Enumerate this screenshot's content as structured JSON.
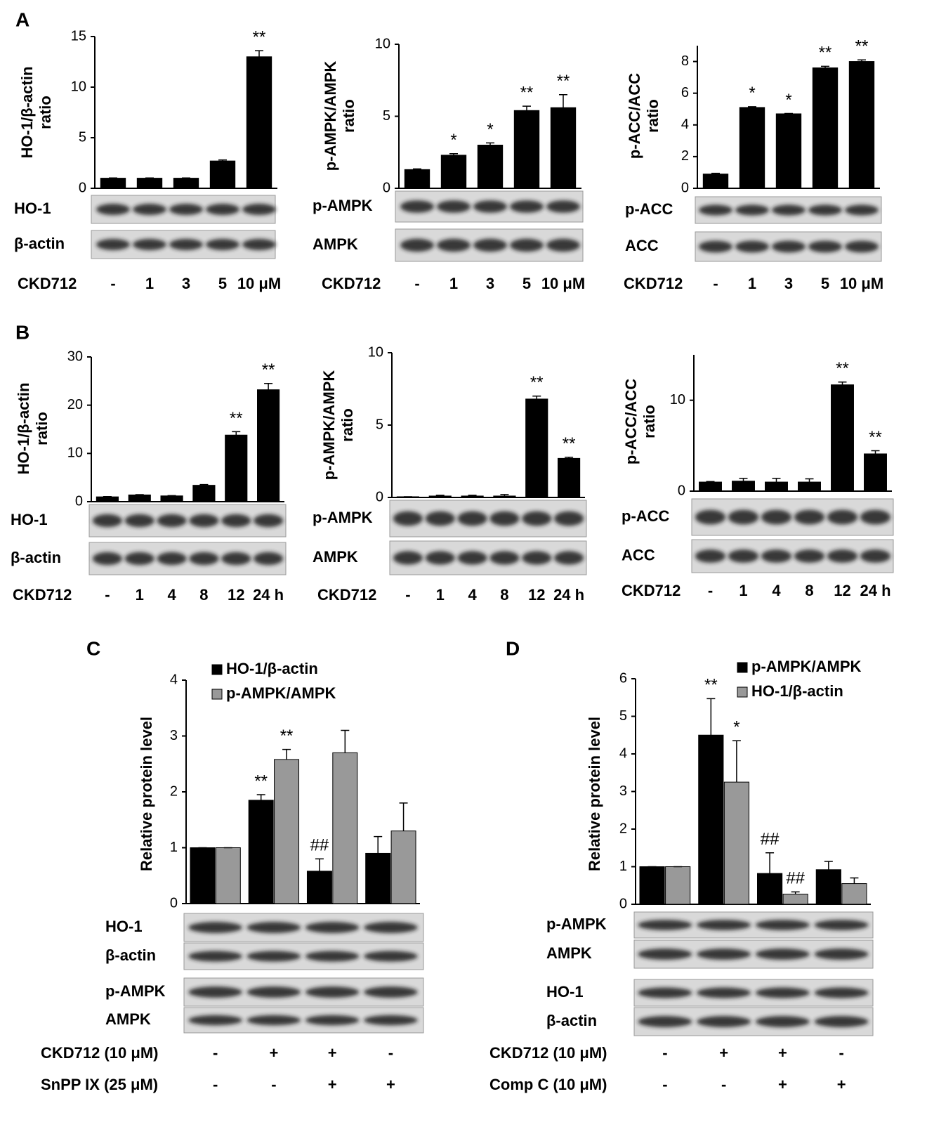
{
  "chart_data": [
    {
      "type": "bar",
      "panel": "A",
      "ylabel": [
        "HO-1/β-actin",
        "ratio"
      ],
      "ylim": [
        0,
        15
      ],
      "yticks": [
        0,
        5,
        10,
        15
      ],
      "xlabel": "CKD712",
      "categories": [
        "-",
        "1",
        "3",
        "5",
        "10 μM"
      ],
      "series": [
        {
          "color": "#000000",
          "values": [
            1,
            1,
            1,
            2.7,
            13
          ],
          "errors": [
            0.02,
            0.02,
            0.02,
            0.1,
            0.6
          ],
          "annotations": [
            null,
            null,
            null,
            null,
            "**"
          ]
        }
      ],
      "blots": [
        "HO-1",
        "β-actin"
      ]
    },
    {
      "type": "bar",
      "ylabel": [
        "p-AMPK/AMPK",
        "ratio"
      ],
      "ylim": [
        0,
        10
      ],
      "yticks": [
        0,
        5,
        10
      ],
      "xlabel": "CKD712",
      "categories": [
        "-",
        "1",
        "3",
        "5",
        "10 μM"
      ],
      "series": [
        {
          "color": "#000000",
          "values": [
            1.3,
            2.3,
            3,
            5.4,
            5.6
          ],
          "errors": [
            0.05,
            0.1,
            0.15,
            0.3,
            0.9
          ],
          "annotations": [
            null,
            "*",
            "*",
            "**",
            "**"
          ]
        }
      ],
      "blots": [
        "p-AMPK",
        "AMPK"
      ]
    },
    {
      "type": "bar",
      "ylabel": [
        "p-ACC/ACC",
        "ratio"
      ],
      "ylim": [
        0,
        9
      ],
      "yticks": [
        0,
        2,
        4,
        6,
        8
      ],
      "xlabel": "CKD712",
      "categories": [
        "-",
        "1",
        "3",
        "5",
        "10 μM"
      ],
      "series": [
        {
          "color": "#000000",
          "values": [
            0.9,
            5.1,
            4.7,
            7.6,
            8
          ],
          "errors": [
            0.05,
            0.05,
            0.02,
            0.1,
            0.1
          ],
          "annotations": [
            null,
            "*",
            "*",
            "**",
            "**"
          ]
        }
      ],
      "blots": [
        "p-ACC",
        "ACC"
      ]
    },
    {
      "type": "bar",
      "panel": "B",
      "ylabel": [
        "HO-1/β-actin",
        "ratio"
      ],
      "ylim": [
        0,
        30
      ],
      "yticks": [
        0,
        10,
        20,
        30
      ],
      "xlabel": "CKD712",
      "categories": [
        "-",
        "1",
        "4",
        "8",
        "12",
        "24 h"
      ],
      "series": [
        {
          "color": "#000000",
          "values": [
            1,
            1.4,
            1.2,
            3.4,
            13.8,
            23.2
          ],
          "errors": [
            0.05,
            0.05,
            0.05,
            0.15,
            0.7,
            1.3
          ],
          "annotations": [
            null,
            null,
            null,
            null,
            "**",
            "**"
          ]
        }
      ],
      "blots": [
        "HO-1",
        "β-actin"
      ]
    },
    {
      "type": "bar",
      "ylabel": [
        "p-AMPK/AMPK",
        "ratio"
      ],
      "ylim": [
        0,
        10
      ],
      "yticks": [
        0,
        5,
        10
      ],
      "xlabel": "CKD712",
      "categories": [
        "-",
        "1",
        "4",
        "8",
        "12",
        "24 h"
      ],
      "series": [
        {
          "color": "#000000",
          "values": [
            0.05,
            0.1,
            0.1,
            0.1,
            6.8,
            2.7
          ],
          "errors": [
            0,
            0.05,
            0.05,
            0.1,
            0.2,
            0.08
          ],
          "annotations": [
            null,
            null,
            null,
            null,
            "**",
            "**"
          ]
        }
      ],
      "blots": [
        "p-AMPK",
        "AMPK"
      ]
    },
    {
      "type": "bar",
      "ylabel": [
        "p-ACC/ACC",
        "ratio"
      ],
      "ylim": [
        0,
        15
      ],
      "yticks": [
        0,
        10
      ],
      "xlabel": "CKD712",
      "categories": [
        "-",
        "1",
        "4",
        "8",
        "12",
        "24 h"
      ],
      "series": [
        {
          "color": "#000000",
          "values": [
            1,
            1.1,
            1,
            1,
            11.7,
            4.1
          ],
          "errors": [
            0.05,
            0.3,
            0.4,
            0.35,
            0.3,
            0.35
          ],
          "annotations": [
            null,
            null,
            null,
            null,
            "**",
            "**"
          ]
        }
      ],
      "blots": [
        "p-ACC",
        "ACC"
      ]
    },
    {
      "type": "bar",
      "panel": "C",
      "ylabel": [
        "Relative protein level"
      ],
      "ylim": [
        0,
        4
      ],
      "yticks": [
        0,
        1,
        2,
        3,
        4
      ],
      "series": [
        {
          "name": "HO-1/β-actin",
          "color": "#000000",
          "values": [
            1,
            1.85,
            0.58,
            0.9
          ],
          "errors": [
            0,
            0.1,
            0.22,
            0.3
          ],
          "annotations": [
            null,
            "**",
            "##",
            null
          ]
        },
        {
          "name": "p-AMPK/AMPK",
          "color": "#999999",
          "values": [
            1,
            2.58,
            2.7,
            1.3
          ],
          "errors": [
            0,
            0.18,
            0.4,
            0.5
          ],
          "annotations": [
            null,
            "**",
            null,
            null
          ]
        }
      ],
      "blots": [
        "HO-1",
        "β-actin",
        "p-AMPK",
        "AMPK"
      ],
      "treatments": [
        {
          "label": "CKD712 (10 μM)",
          "values": [
            "-",
            "+",
            "+",
            "-"
          ]
        },
        {
          "label": "SnPP IX (25 μM)",
          "values": [
            "-",
            "-",
            "+",
            "+"
          ]
        }
      ]
    },
    {
      "type": "bar",
      "panel": "D",
      "ylabel": [
        "Relative protein level"
      ],
      "ylim": [
        0,
        6
      ],
      "yticks": [
        0,
        1,
        2,
        3,
        4,
        5,
        6
      ],
      "series": [
        {
          "name": "p-AMPK/AMPK",
          "color": "#000000",
          "values": [
            1,
            4.5,
            0.82,
            0.92
          ],
          "errors": [
            0,
            0.97,
            0.55,
            0.22
          ],
          "annotations": [
            null,
            "**",
            "##",
            null
          ]
        },
        {
          "name": "HO-1/β-actin",
          "color": "#999999",
          "values": [
            1,
            3.25,
            0.27,
            0.55
          ],
          "errors": [
            0,
            1.1,
            0.06,
            0.15
          ],
          "annotations": [
            null,
            "*",
            "##",
            null
          ]
        }
      ],
      "blots": [
        "p-AMPK",
        "AMPK",
        "HO-1",
        "β-actin"
      ],
      "treatments": [
        {
          "label": "CKD712 (10 μM)",
          "values": [
            "-",
            "+",
            "+",
            "-"
          ]
        },
        {
          "label": "Comp C (10 μM)",
          "values": [
            "-",
            "-",
            "+",
            "+"
          ]
        }
      ]
    }
  ]
}
